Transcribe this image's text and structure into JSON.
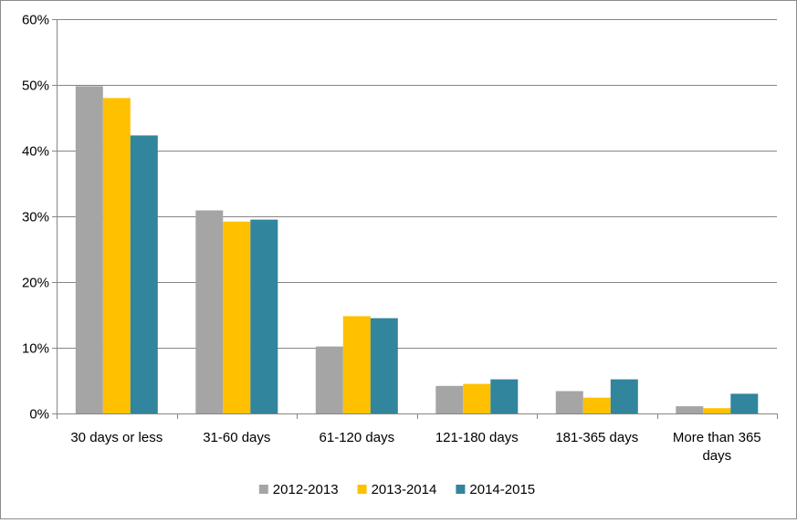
{
  "chart_data": {
    "type": "bar",
    "title": "",
    "xlabel": "",
    "ylabel": "",
    "categories": [
      [
        "30 days or less"
      ],
      [
        "31-60 days"
      ],
      [
        "61-120 days"
      ],
      [
        "121-180 days"
      ],
      [
        "181-365 days"
      ],
      [
        "More than 365",
        "days"
      ]
    ],
    "y_ticks": [
      "0%",
      "10%",
      "20%",
      "30%",
      "40%",
      "50%",
      "60%"
    ],
    "ylim": [
      0,
      60
    ],
    "y_unit": "%",
    "grid": "horizontal",
    "legend_position": "bottom",
    "series": [
      {
        "name": "2012-2013",
        "color": "#a5a5a5",
        "values": [
          49.8,
          30.9,
          10.2,
          4.2,
          3.4,
          1.1
        ]
      },
      {
        "name": "2013-2014",
        "color": "#ffc000",
        "values": [
          48.0,
          29.2,
          14.8,
          4.5,
          2.4,
          0.8
        ]
      },
      {
        "name": "2014-2015",
        "color": "#31859c",
        "values": [
          42.3,
          29.5,
          14.5,
          5.2,
          5.2,
          3.0
        ]
      }
    ]
  }
}
